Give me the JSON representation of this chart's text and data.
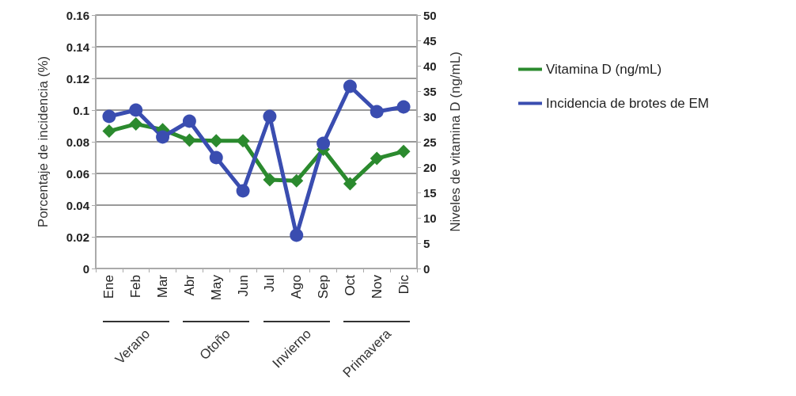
{
  "chart_data": {
    "type": "line",
    "ylabel": "Porcentaje de incidencia (%)",
    "y2label": "Niveles de vitamina D (ng/mL)",
    "categories": [
      "Ene",
      "Feb",
      "Mar",
      "Abr",
      "May",
      "Jun",
      "Jul",
      "Ago",
      "Sep",
      "Oct",
      "Nov",
      "Dic"
    ],
    "series": [
      {
        "name": "Vitamina D (ng/mL)",
        "color": "#2b8a2e",
        "axis": "y2",
        "marker": "diamond",
        "values": [
          27.1,
          28.5,
          27.4,
          25.3,
          25.2,
          25.2,
          17.5,
          17.3,
          23.5,
          16.7,
          21.7,
          23.1
        ]
      },
      {
        "name": "Incidencia de brotes de EM",
        "color": "#3a4db0",
        "marker": "circle",
        "values": [
          0.096,
          0.1,
          0.083,
          0.093,
          0.07,
          0.049,
          0.096,
          0.021,
          0.079,
          0.115,
          0.099,
          0.102
        ]
      }
    ],
    "ylim": [
      0,
      0.16
    ],
    "yticks": [
      0,
      0.02,
      0.04,
      0.06,
      0.08,
      0.1,
      0.12,
      0.14,
      0.16
    ],
    "y2lim": [
      0,
      50
    ],
    "y2ticks": [
      0,
      5,
      10,
      15,
      20,
      25,
      30,
      35,
      40,
      45,
      50
    ],
    "annotations": [
      "Verano",
      "Otoño",
      "Invierno",
      "Primavera"
    ],
    "grid": "y",
    "legend": "right",
    "line_style": "solid"
  }
}
